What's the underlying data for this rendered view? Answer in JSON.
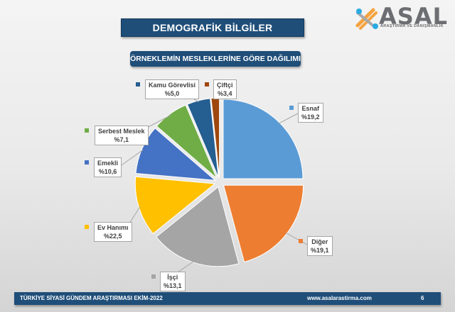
{
  "header": {
    "title": "DEMOGRAFİK BİLGİLER",
    "subtitle": "ÖRNEKLEMİN MESLEKLERİNE GÖRE DAĞILIMI"
  },
  "logo": {
    "name": "ASAL",
    "tagline": "ARAŞTIRMA VE DANIŞMANLIK",
    "icon": "asal-logo-icon"
  },
  "chart_data": {
    "type": "pie",
    "title": "ÖRNEKLEMİN MESLEKLERİNE GÖRE DAĞILIMI",
    "value_prefix": "%",
    "decimal_separator": ",",
    "exploded": true,
    "slices": [
      {
        "label": "Esnaf",
        "value": 19.2,
        "display": "%19,2",
        "color": "#5b9bd5"
      },
      {
        "label": "Diğer",
        "value": 19.1,
        "display": "%19,1",
        "color": "#ed7d31"
      },
      {
        "label": "İşçi",
        "value": 13.1,
        "display": "%13,1",
        "color": "#a5a5a5"
      },
      {
        "label": "Ev Hanımı",
        "value": 22.5,
        "display": "%22,5",
        "color": "#ffc000"
      },
      {
        "label": "Emekli",
        "value": 10.6,
        "display": "%10,6",
        "color": "#4472c4"
      },
      {
        "label": "Serbest Meslek",
        "value": 7.1,
        "display": "%7,1",
        "color": "#70ad47"
      },
      {
        "label": "Kamu Görevlisi",
        "value": 5.0,
        "display": "%5,0",
        "color": "#255e91"
      },
      {
        "label": "Çiftçi",
        "value": 3.4,
        "display": "%3,4",
        "color": "#9e480e"
      }
    ]
  },
  "footer": {
    "left": "TÜRKİYE SİYASİ GÜNDEM ARAŞTIRMASI EKİM-2022",
    "url": "www.asalarastirma.com",
    "page": "6"
  }
}
